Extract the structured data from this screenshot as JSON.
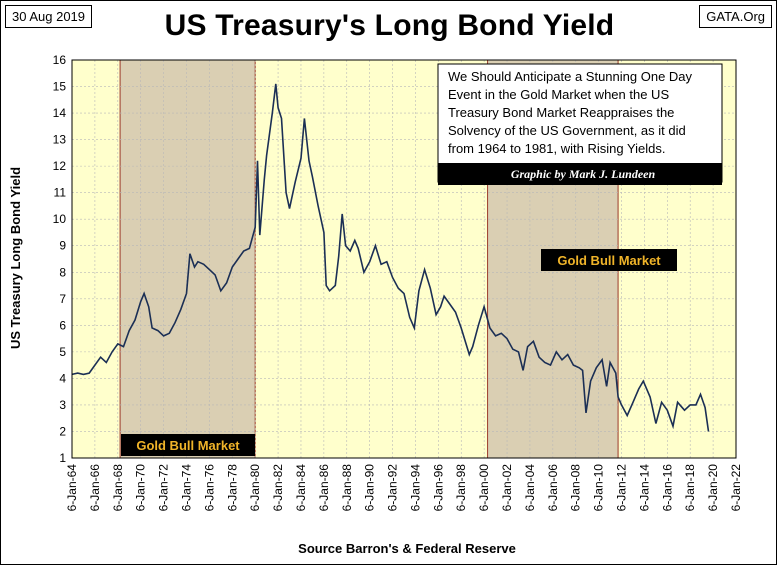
{
  "header": {
    "date": "30 Aug 2019",
    "source_site": "GATA.Org",
    "title": "US Treasury's Long Bond Yield"
  },
  "annotation": {
    "lines": [
      "We Should Anticipate a Stunning One Day",
      "Event in the Gold Market when the US",
      "Treasury Bond Market Reappraises the",
      "Solvency of the US Government,  as it did",
      "from 1964 to 1981, with Rising Yields."
    ],
    "credit": "Graphic by Mark J. Lundeen"
  },
  "regions": [
    {
      "label": "Gold Bull Market",
      "start": 1968.2,
      "end": 1980.0
    },
    {
      "label": "Gold Bull Market",
      "start": 2000.3,
      "end": 2011.7
    }
  ],
  "colors": {
    "background": "#ffffcc",
    "region_fill": "#dacfb3",
    "region_border": "#9b3a2a",
    "series": "#1b2f55",
    "grid": "#b8b8b8",
    "label_box": "#000000",
    "label_text": "#f0b429"
  },
  "chart_data": {
    "type": "line",
    "xlabel": "Source Barron's & Federal Reserve",
    "ylabel": "US Treasury  Long Bond Yield",
    "ylim": [
      1,
      16
    ],
    "xlim": [
      1964.0,
      2022.0
    ],
    "yticks": [
      1,
      2,
      3,
      4,
      5,
      6,
      7,
      8,
      9,
      10,
      11,
      12,
      13,
      14,
      15,
      16
    ],
    "xticks": [
      {
        "label": "6-Jan-64",
        "x": 1964
      },
      {
        "label": "6-Jan-66",
        "x": 1966
      },
      {
        "label": "6-Jan-68",
        "x": 1968
      },
      {
        "label": "6-Jan-70",
        "x": 1970
      },
      {
        "label": "6-Jan-72",
        "x": 1972
      },
      {
        "label": "6-Jan-74",
        "x": 1974
      },
      {
        "label": "6-Jan-76",
        "x": 1976
      },
      {
        "label": "6-Jan-78",
        "x": 1978
      },
      {
        "label": "6-Jan-80",
        "x": 1980
      },
      {
        "label": "6-Jan-82",
        "x": 1982
      },
      {
        "label": "6-Jan-84",
        "x": 1984
      },
      {
        "label": "6-Jan-86",
        "x": 1986
      },
      {
        "label": "6-Jan-88",
        "x": 1988
      },
      {
        "label": "6-Jan-90",
        "x": 1990
      },
      {
        "label": "6-Jan-92",
        "x": 1992
      },
      {
        "label": "6-Jan-94",
        "x": 1994
      },
      {
        "label": "6-Jan-96",
        "x": 1996
      },
      {
        "label": "6-Jan-98",
        "x": 1998
      },
      {
        "label": "6-Jan-00",
        "x": 2000
      },
      {
        "label": "6-Jan-02",
        "x": 2002
      },
      {
        "label": "6-Jan-04",
        "x": 2004
      },
      {
        "label": "6-Jan-06",
        "x": 2006
      },
      {
        "label": "6-Jan-08",
        "x": 2008
      },
      {
        "label": "6-Jan-10",
        "x": 2010
      },
      {
        "label": "6-Jan-12",
        "x": 2012
      },
      {
        "label": "6-Jan-14",
        "x": 2014
      },
      {
        "label": "6-Jan-16",
        "x": 2016
      },
      {
        "label": "6-Jan-18",
        "x": 2018
      },
      {
        "label": "6-Jan-20",
        "x": 2020
      },
      {
        "label": "6-Jan-22",
        "x": 2022
      }
    ],
    "grid": true,
    "series": [
      {
        "points": [
          [
            1964.0,
            4.15
          ],
          [
            1964.5,
            4.2
          ],
          [
            1965.0,
            4.15
          ],
          [
            1965.5,
            4.2
          ],
          [
            1966.0,
            4.5
          ],
          [
            1966.5,
            4.8
          ],
          [
            1967.0,
            4.6
          ],
          [
            1967.5,
            5.0
          ],
          [
            1968.0,
            5.3
          ],
          [
            1968.5,
            5.2
          ],
          [
            1969.0,
            5.8
          ],
          [
            1969.5,
            6.2
          ],
          [
            1970.0,
            6.9
          ],
          [
            1970.3,
            7.2
          ],
          [
            1970.7,
            6.7
          ],
          [
            1971.0,
            5.9
          ],
          [
            1971.5,
            5.8
          ],
          [
            1972.0,
            5.6
          ],
          [
            1972.5,
            5.7
          ],
          [
            1973.0,
            6.1
          ],
          [
            1973.5,
            6.6
          ],
          [
            1974.0,
            7.2
          ],
          [
            1974.3,
            8.7
          ],
          [
            1974.7,
            8.2
          ],
          [
            1975.0,
            8.4
          ],
          [
            1975.5,
            8.3
          ],
          [
            1976.0,
            8.1
          ],
          [
            1976.5,
            7.9
          ],
          [
            1977.0,
            7.3
          ],
          [
            1977.5,
            7.6
          ],
          [
            1978.0,
            8.2
          ],
          [
            1978.5,
            8.5
          ],
          [
            1979.0,
            8.8
          ],
          [
            1979.5,
            8.9
          ],
          [
            1980.0,
            9.7
          ],
          [
            1980.2,
            12.2
          ],
          [
            1980.4,
            9.4
          ],
          [
            1980.8,
            11.5
          ],
          [
            1981.0,
            12.4
          ],
          [
            1981.5,
            14.0
          ],
          [
            1981.8,
            15.1
          ],
          [
            1982.0,
            14.2
          ],
          [
            1982.3,
            13.8
          ],
          [
            1982.7,
            11.0
          ],
          [
            1983.0,
            10.4
          ],
          [
            1983.5,
            11.4
          ],
          [
            1984.0,
            12.3
          ],
          [
            1984.3,
            13.8
          ],
          [
            1984.7,
            12.2
          ],
          [
            1985.0,
            11.6
          ],
          [
            1985.5,
            10.5
          ],
          [
            1986.0,
            9.5
          ],
          [
            1986.2,
            7.5
          ],
          [
            1986.5,
            7.3
          ],
          [
            1987.0,
            7.5
          ],
          [
            1987.3,
            8.6
          ],
          [
            1987.6,
            10.2
          ],
          [
            1987.9,
            9.0
          ],
          [
            1988.3,
            8.8
          ],
          [
            1988.7,
            9.2
          ],
          [
            1989.0,
            8.9
          ],
          [
            1989.5,
            8.0
          ],
          [
            1990.0,
            8.4
          ],
          [
            1990.5,
            9.0
          ],
          [
            1991.0,
            8.3
          ],
          [
            1991.5,
            8.4
          ],
          [
            1992.0,
            7.8
          ],
          [
            1992.5,
            7.4
          ],
          [
            1993.0,
            7.2
          ],
          [
            1993.5,
            6.3
          ],
          [
            1993.9,
            5.9
          ],
          [
            1994.3,
            7.3
          ],
          [
            1994.8,
            8.1
          ],
          [
            1995.3,
            7.4
          ],
          [
            1995.8,
            6.4
          ],
          [
            1996.2,
            6.7
          ],
          [
            1996.5,
            7.1
          ],
          [
            1997.0,
            6.8
          ],
          [
            1997.5,
            6.5
          ],
          [
            1998.0,
            5.9
          ],
          [
            1998.7,
            4.9
          ],
          [
            1999.0,
            5.2
          ],
          [
            1999.5,
            6.0
          ],
          [
            2000.0,
            6.7
          ],
          [
            2000.5,
            5.9
          ],
          [
            2001.0,
            5.6
          ],
          [
            2001.5,
            5.7
          ],
          [
            2002.0,
            5.5
          ],
          [
            2002.5,
            5.1
          ],
          [
            2003.0,
            5.0
          ],
          [
            2003.4,
            4.3
          ],
          [
            2003.8,
            5.2
          ],
          [
            2004.3,
            5.4
          ],
          [
            2004.8,
            4.8
          ],
          [
            2005.3,
            4.6
          ],
          [
            2005.8,
            4.5
          ],
          [
            2006.3,
            5.0
          ],
          [
            2006.8,
            4.7
          ],
          [
            2007.3,
            4.9
          ],
          [
            2007.8,
            4.5
          ],
          [
            2008.3,
            4.4
          ],
          [
            2008.6,
            4.3
          ],
          [
            2008.9,
            2.7
          ],
          [
            2009.3,
            3.9
          ],
          [
            2009.8,
            4.4
          ],
          [
            2010.3,
            4.7
          ],
          [
            2010.7,
            3.7
          ],
          [
            2011.0,
            4.6
          ],
          [
            2011.5,
            4.2
          ],
          [
            2011.7,
            3.3
          ],
          [
            2012.0,
            3.0
          ],
          [
            2012.5,
            2.6
          ],
          [
            2013.0,
            3.1
          ],
          [
            2013.5,
            3.6
          ],
          [
            2013.9,
            3.9
          ],
          [
            2014.5,
            3.3
          ],
          [
            2015.0,
            2.3
          ],
          [
            2015.5,
            3.1
          ],
          [
            2016.0,
            2.8
          ],
          [
            2016.5,
            2.2
          ],
          [
            2016.9,
            3.1
          ],
          [
            2017.5,
            2.8
          ],
          [
            2018.0,
            3.0
          ],
          [
            2018.5,
            3.0
          ],
          [
            2018.9,
            3.4
          ],
          [
            2019.3,
            2.9
          ],
          [
            2019.6,
            2.0
          ]
        ]
      }
    ]
  }
}
